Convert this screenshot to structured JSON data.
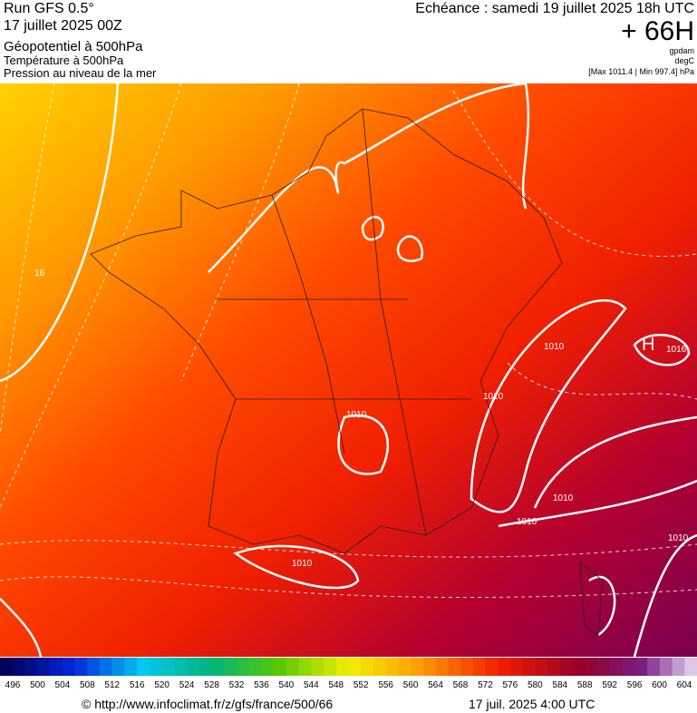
{
  "header": {
    "run": "Run GFS 0.5°",
    "date": "17 juillet 2025 00Z",
    "field1": "Géopotentiel à 500hPa",
    "field2": "Température à 500hPa",
    "field3": "Pression au niveau de la mer",
    "valid": "Echéance : samedi 19 juillet 2025 18h UTC",
    "lead": "+ 66H",
    "unit1": "gpdam",
    "unit2": "degC",
    "range": "[Max 1011.4 | Min 997.4] hPa"
  },
  "map": {
    "labels": [
      "1010",
      "1010",
      "1010",
      "1010",
      "1010",
      "1010",
      "1016",
      "H",
      "16",
      "1010"
    ]
  },
  "colorbar": {
    "ticks": [
      496,
      500,
      504,
      508,
      512,
      516,
      520,
      524,
      528,
      532,
      536,
      540,
      544,
      548,
      552,
      556,
      560,
      564,
      568,
      572,
      576,
      580,
      584,
      588,
      592,
      596,
      600,
      604
    ]
  },
  "footer": {
    "source": "© http://www.infoclimat.fr/z/gfs/france/500/66",
    "time": "17 juil. 2025  4:00 UTC"
  }
}
